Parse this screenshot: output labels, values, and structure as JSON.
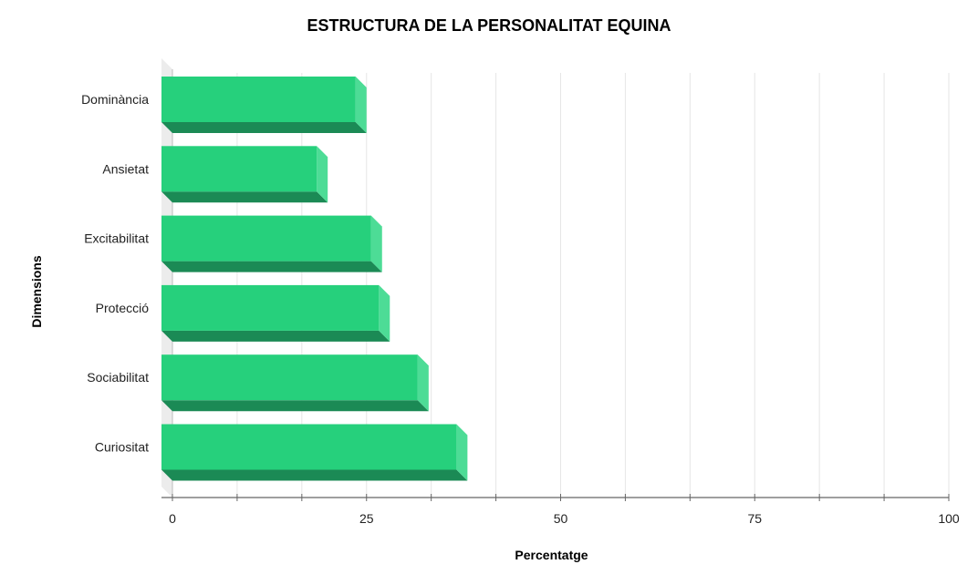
{
  "chart_data": {
    "type": "bar",
    "orientation": "horizontal",
    "title": "ESTRUCTURA DE LA PERSONALITAT EQUINA",
    "xlabel": "Percentatge",
    "ylabel": "Dimensions",
    "xlim": [
      0,
      100
    ],
    "x_ticks": [
      0,
      25,
      50,
      75,
      100
    ],
    "grid": true,
    "categories": [
      "Dominància",
      "Ansietat",
      "Excitabilitat",
      "Protecció",
      "Sociabilitat",
      "Curiositat"
    ],
    "values": [
      25,
      20,
      27,
      28,
      33,
      38
    ],
    "colors": {
      "bar_front": "#26d07c",
      "bar_side": "#4ddc96",
      "bar_bottom": "#1b8a55",
      "grid": "#e6e6e6",
      "axis": "#666666"
    }
  }
}
